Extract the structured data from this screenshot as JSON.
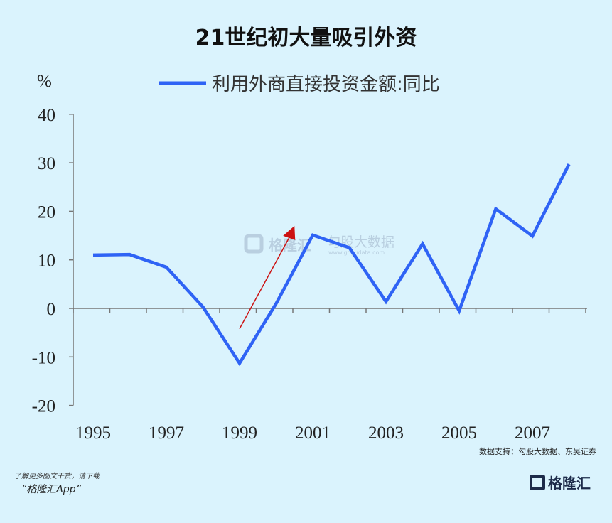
{
  "title": "21世纪初大量吸引外资",
  "chart_data": {
    "type": "line",
    "title": "21世纪初大量吸引外资",
    "ylabel": "%",
    "xlabel": "",
    "x": [
      1995,
      1996,
      1997,
      1998,
      1999,
      2000,
      2001,
      2002,
      2003,
      2004,
      2005,
      2006,
      2007,
      2008
    ],
    "series": [
      {
        "name": "利用外商直接投资金额:同比",
        "color": "#2f63f5",
        "values": [
          11.0,
          11.1,
          8.5,
          0.3,
          -11.3,
          1.0,
          15.1,
          12.5,
          1.4,
          13.3,
          -0.5,
          20.5,
          14.9,
          29.7
        ]
      }
    ],
    "x_tick_labels": [
      "1995",
      "1997",
      "1999",
      "2001",
      "2003",
      "2005",
      "2007"
    ],
    "y_tick_labels": [
      "40",
      "30",
      "20",
      "10",
      "0",
      "-10",
      "-20"
    ],
    "ylim": [
      -20,
      40
    ],
    "xlim": [
      1995,
      2008
    ],
    "grid": false,
    "legend_position": "top",
    "annotation": {
      "type": "arrow",
      "color": "#cc1111",
      "from": [
        1999,
        -4.2
      ],
      "to": [
        2000.5,
        17
      ]
    }
  },
  "source": "数据支持：勾股大数据、东吴证券",
  "footer": {
    "promo_line1": "了解更多图文干货，请下载",
    "promo_line2": "“格隆汇App”",
    "logo_text": "格隆汇"
  },
  "watermark": {
    "brand1": "格隆汇",
    "brand2": "勾股大数据",
    "url": "www.gogudata.com"
  }
}
